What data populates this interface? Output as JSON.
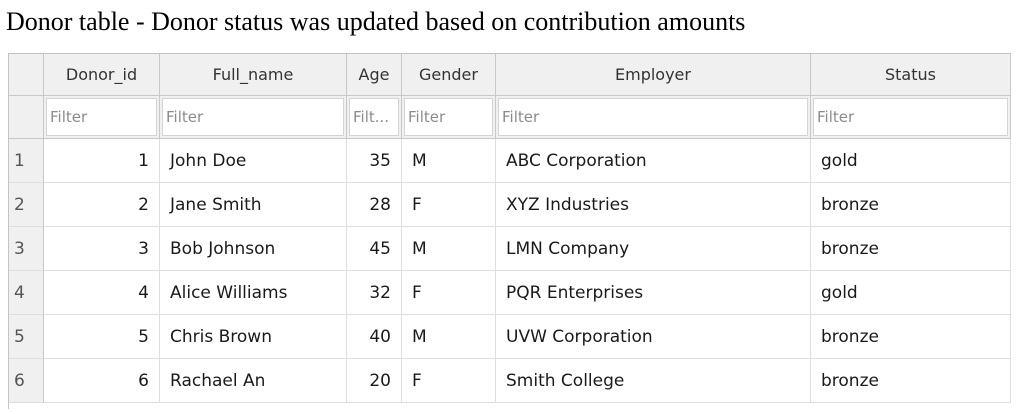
{
  "caption": "Donor table - Donor status was updated based on contribution amounts",
  "table": {
    "columns": [
      "Donor_id",
      "Full_name",
      "Age",
      "Gender",
      "Employer",
      "Status"
    ],
    "filter_placeholders": [
      "Filter",
      "Filter",
      "Filt...",
      "Filter",
      "Filter",
      "Filter"
    ],
    "rows": [
      {
        "n": "1",
        "cells": [
          "1",
          "John Doe",
          "35",
          "M",
          "ABC Corporation",
          "gold"
        ]
      },
      {
        "n": "2",
        "cells": [
          "2",
          "Jane Smith",
          "28",
          "F",
          "XYZ Industries",
          "bronze"
        ]
      },
      {
        "n": "3",
        "cells": [
          "3",
          "Bob Johnson",
          "45",
          "M",
          "LMN Company",
          "bronze"
        ]
      },
      {
        "n": "4",
        "cells": [
          "4",
          "Alice Williams",
          "32",
          "F",
          "PQR Enterprises",
          "gold"
        ]
      },
      {
        "n": "5",
        "cells": [
          "5",
          "Chris Brown",
          "40",
          "M",
          "UVW Corporation",
          "bronze"
        ]
      },
      {
        "n": "6",
        "cells": [
          "6",
          "Rachael An",
          "20",
          "F",
          "Smith College",
          "bronze"
        ]
      }
    ]
  }
}
